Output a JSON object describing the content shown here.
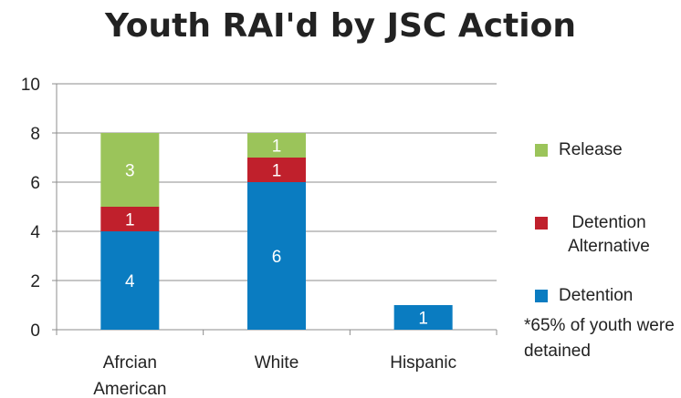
{
  "chart_data": {
    "type": "bar",
    "stacked": true,
    "title": "Youth RAI'd by JSC Action",
    "categories": [
      "Afrcian American",
      "White",
      "Hispanic"
    ],
    "series": [
      {
        "name": "Detention",
        "values": [
          4,
          6,
          1
        ],
        "color": "#0a7cc1"
      },
      {
        "name": "Detention Alternative",
        "values": [
          1,
          1,
          0
        ],
        "color": "#c0202c"
      },
      {
        "name": "Release",
        "values": [
          3,
          1,
          0
        ],
        "color": "#9bc45a"
      }
    ],
    "ylim": [
      0,
      10
    ],
    "yticks": [
      "0",
      "2",
      "4",
      "6",
      "8",
      "10"
    ],
    "grid": true,
    "legend_position": "right",
    "xlabel": "",
    "ylabel": ""
  },
  "legend": {
    "release": "Release",
    "detention_alternative": "Detention Alternative",
    "detention": "Detention"
  },
  "footnote": "*65% of youth were detained"
}
